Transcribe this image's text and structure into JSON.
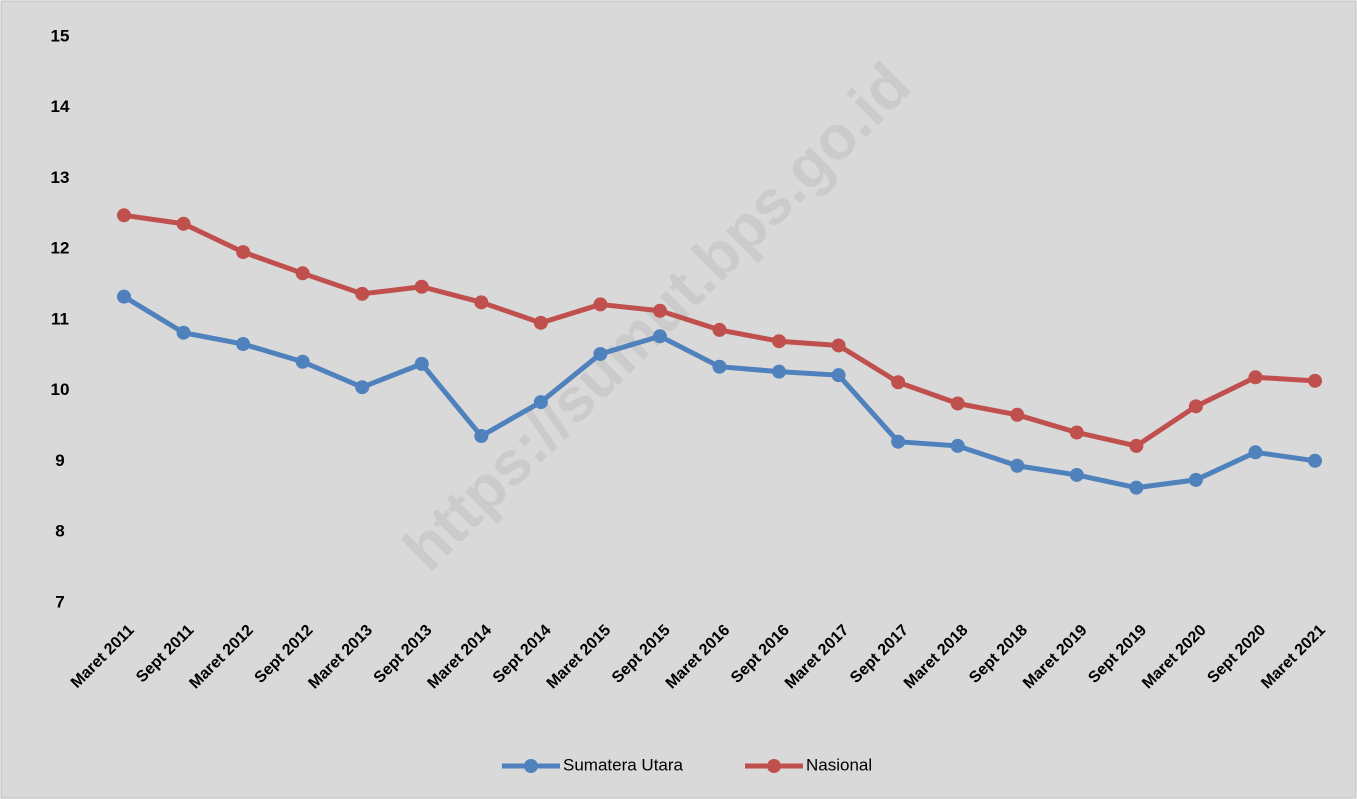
{
  "chart_data": {
    "type": "line",
    "watermark": "https://sumut.bps.go.id",
    "categories": [
      "Maret 2011",
      "Sept 2011",
      "Maret 2012",
      "Sept 2012",
      "Maret 2013",
      "Sept 2013",
      "Maret 2014",
      "Sept 2014",
      "Maret 2015",
      "Sept 2015",
      "Maret 2016",
      "Sept 2016",
      "Maret 2017",
      "Sept 2017",
      "Maret 2018",
      "Sept 2018",
      "Maret 2019",
      "Sept 2019",
      "Maret 2020",
      "Sept 2020",
      "Maret 2021"
    ],
    "series": [
      {
        "name": "Sumatera Utara",
        "color": "#4f81bd",
        "values": [
          11.33,
          10.82,
          10.66,
          10.41,
          10.05,
          10.38,
          9.36,
          9.84,
          10.52,
          10.77,
          10.34,
          10.27,
          10.22,
          9.28,
          9.22,
          8.94,
          8.81,
          8.63,
          8.74,
          9.13,
          9.01
        ]
      },
      {
        "name": "Nasional",
        "color": "#c0504d",
        "values": [
          12.48,
          12.36,
          11.96,
          11.66,
          11.37,
          11.47,
          11.25,
          10.96,
          11.22,
          11.13,
          10.86,
          10.7,
          10.64,
          10.12,
          9.82,
          9.66,
          9.41,
          9.22,
          9.78,
          10.19,
          10.14
        ]
      }
    ],
    "ylim": [
      7,
      15
    ],
    "yticks": [
      7,
      8,
      9,
      10,
      11,
      12,
      13,
      14,
      15
    ],
    "grid": false,
    "legend": "bottom"
  }
}
